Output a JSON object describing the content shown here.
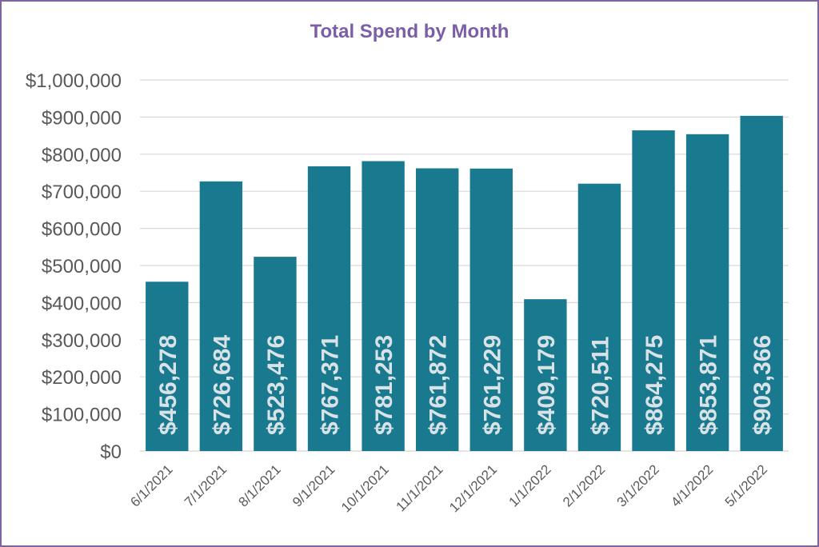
{
  "colors": {
    "bar": "#18798f",
    "title": "#7b5ea7",
    "border": "#8064a2",
    "gridline": "#d9d9d9",
    "tick_text": "#595959",
    "data_label": "#d9e2e6"
  },
  "chart_data": {
    "type": "bar",
    "title": "Total Spend by Month",
    "xlabel": "",
    "ylabel": "",
    "categories": [
      "6/1/2021",
      "7/1/2021",
      "8/1/2021",
      "9/1/2021",
      "10/1/2021",
      "11/1/2021",
      "12/1/2021",
      "1/1/2022",
      "2/1/2022",
      "3/1/2022",
      "4/1/2022",
      "5/1/2022"
    ],
    "values": [
      456278,
      726684,
      523476,
      767371,
      781253,
      761872,
      761229,
      409179,
      720511,
      864275,
      853871,
      903366
    ],
    "data_labels": [
      "$456,278",
      "$726,684",
      "$523,476",
      "$767,371",
      "$781,253",
      "$761,872",
      "$761,229",
      "$409,179",
      "$720,511",
      "$864,275",
      "$853,871",
      "$903,366"
    ],
    "y_ticks": [
      0,
      100000,
      200000,
      300000,
      400000,
      500000,
      600000,
      700000,
      800000,
      900000,
      1000000
    ],
    "y_tick_labels": [
      "$0",
      "$100,000",
      "$200,000",
      "$300,000",
      "$400,000",
      "$500,000",
      "$600,000",
      "$700,000",
      "$800,000",
      "$900,000",
      "$1,000,000"
    ],
    "ylim": [
      0,
      1000000
    ],
    "grid": true,
    "legend": "none"
  }
}
